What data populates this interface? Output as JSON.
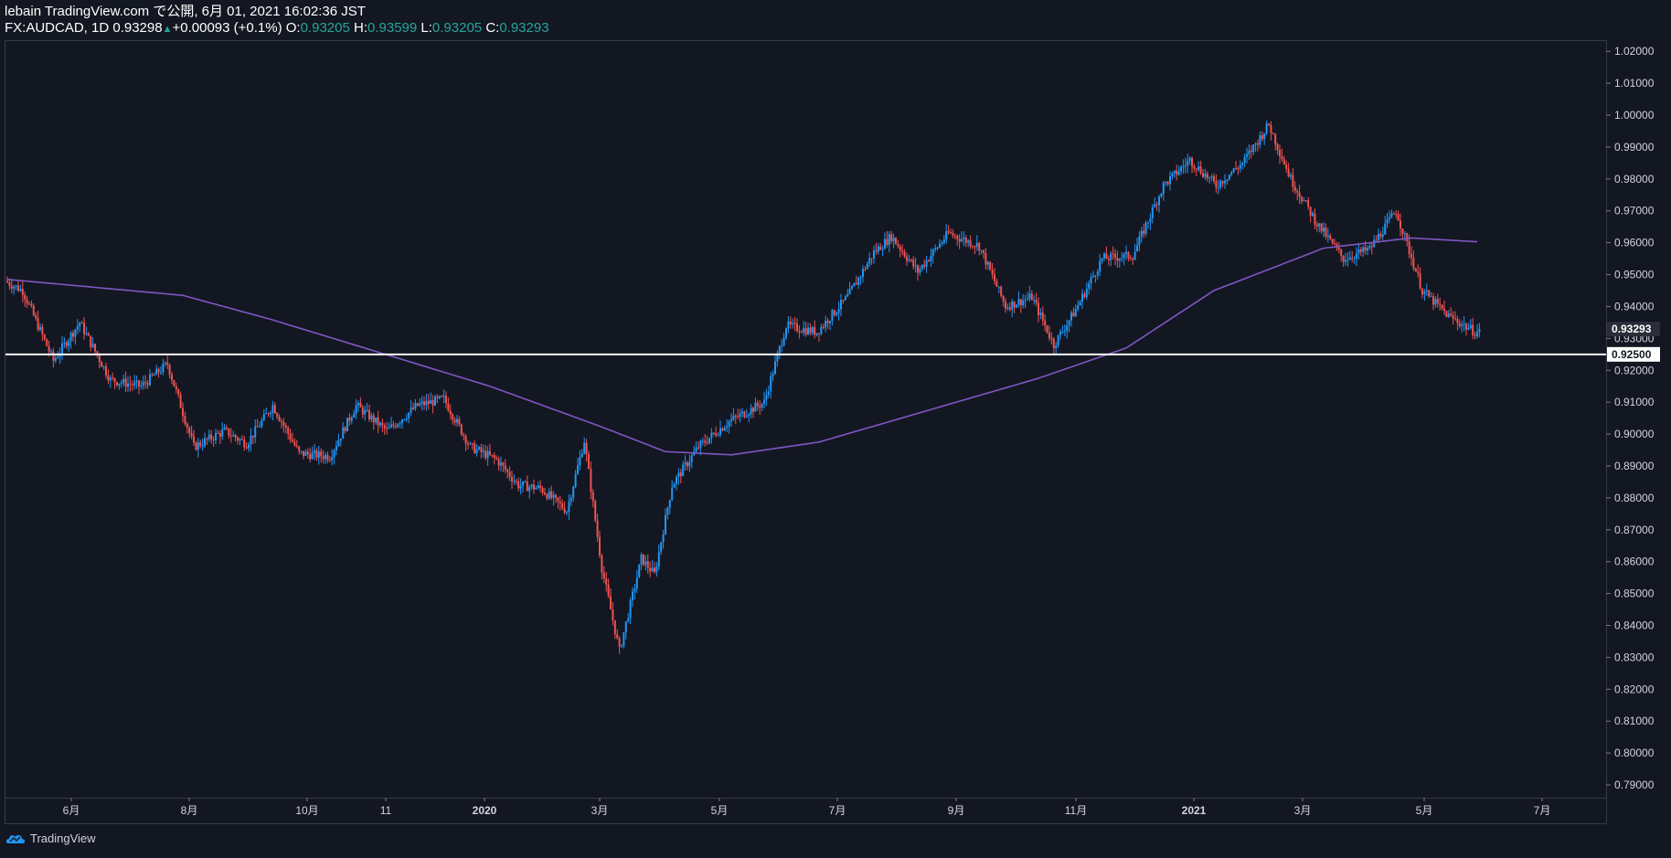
{
  "header": {
    "publisher": "lebain TradingView.com で公開, 6月 01, 2021 16:02:36 JST",
    "symbol": "FX:AUDCAD, 1D",
    "last": "0.93298",
    "change_arrow": "▲",
    "change": "+0.00093 (+0.1%)",
    "open_label": "O:",
    "open": "0.93205",
    "high_label": "H:",
    "high": "0.93599",
    "low_label": "L:",
    "low": "0.93205",
    "close_label": "C:",
    "close": "0.93293"
  },
  "footer": {
    "brand": "TradingView",
    "logo_icon": "tradingview-logo-icon"
  },
  "colors": {
    "background": "#131722",
    "up": "#2196f3",
    "down": "#ef5350",
    "ma": "#7e57c2",
    "hline": "#ffffff",
    "axis_text": "#d1d4dc",
    "teal": "#26a69a"
  },
  "chart_data": {
    "type": "candlestick",
    "symbol": "FX:AUDCAD",
    "interval": "1D",
    "y_axis": {
      "min": 0.786,
      "max": 1.0235,
      "ticks": [
        "0.79000",
        "0.80000",
        "0.81000",
        "0.82000",
        "0.83000",
        "0.84000",
        "0.85000",
        "0.86000",
        "0.87000",
        "0.88000",
        "0.89000",
        "0.90000",
        "0.91000",
        "0.92000",
        "0.93000",
        "0.94000",
        "0.95000",
        "0.96000",
        "0.97000",
        "0.98000",
        "0.99000",
        "1.00000",
        "1.01000",
        "1.02000"
      ],
      "current_price": "0.93293",
      "hline_price": "0.92500"
    },
    "x_axis": {
      "ticks": [
        {
          "label": "6月",
          "bold": false
        },
        {
          "label": "8月",
          "bold": false
        },
        {
          "label": "10月",
          "bold": false
        },
        {
          "label": "11",
          "bold": false
        },
        {
          "label": "2020",
          "bold": true
        },
        {
          "label": "3月",
          "bold": false
        },
        {
          "label": "5月",
          "bold": false
        },
        {
          "label": "7月",
          "bold": false
        },
        {
          "label": "9月",
          "bold": false
        },
        {
          "label": "11月",
          "bold": false
        },
        {
          "label": "2021",
          "bold": true
        },
        {
          "label": "3月",
          "bold": false
        },
        {
          "label": "5月",
          "bold": false
        },
        {
          "label": "7月",
          "bold": false
        }
      ]
    },
    "price_path": [
      {
        "t": 0,
        "p": 0.948
      },
      {
        "t": 8,
        "p": 0.945
      },
      {
        "t": 22,
        "p": 0.923
      },
      {
        "t": 34,
        "p": 0.935
      },
      {
        "t": 48,
        "p": 0.917
      },
      {
        "t": 62,
        "p": 0.915
      },
      {
        "t": 74,
        "p": 0.922
      },
      {
        "t": 86,
        "p": 0.896
      },
      {
        "t": 100,
        "p": 0.901
      },
      {
        "t": 110,
        "p": 0.897
      },
      {
        "t": 122,
        "p": 0.909
      },
      {
        "t": 134,
        "p": 0.894
      },
      {
        "t": 148,
        "p": 0.893
      },
      {
        "t": 160,
        "p": 0.909
      },
      {
        "t": 174,
        "p": 0.901
      },
      {
        "t": 188,
        "p": 0.909
      },
      {
        "t": 200,
        "p": 0.911
      },
      {
        "t": 212,
        "p": 0.896
      },
      {
        "t": 224,
        "p": 0.892
      },
      {
        "t": 234,
        "p": 0.884
      },
      {
        "t": 244,
        "p": 0.883
      },
      {
        "t": 256,
        "p": 0.876
      },
      {
        "t": 264,
        "p": 0.898
      },
      {
        "t": 272,
        "p": 0.858
      },
      {
        "t": 280,
        "p": 0.832
      },
      {
        "t": 290,
        "p": 0.861
      },
      {
        "t": 296,
        "p": 0.856
      },
      {
        "t": 304,
        "p": 0.884
      },
      {
        "t": 316,
        "p": 0.896
      },
      {
        "t": 330,
        "p": 0.904
      },
      {
        "t": 346,
        "p": 0.91
      },
      {
        "t": 356,
        "p": 0.934
      },
      {
        "t": 370,
        "p": 0.932
      },
      {
        "t": 384,
        "p": 0.943
      },
      {
        "t": 396,
        "p": 0.957
      },
      {
        "t": 404,
        "p": 0.962
      },
      {
        "t": 416,
        "p": 0.951
      },
      {
        "t": 430,
        "p": 0.963
      },
      {
        "t": 444,
        "p": 0.959
      },
      {
        "t": 456,
        "p": 0.94
      },
      {
        "t": 468,
        "p": 0.943
      },
      {
        "t": 478,
        "p": 0.928
      },
      {
        "t": 488,
        "p": 0.939
      },
      {
        "t": 500,
        "p": 0.955
      },
      {
        "t": 514,
        "p": 0.956
      },
      {
        "t": 528,
        "p": 0.978
      },
      {
        "t": 540,
        "p": 0.986
      },
      {
        "t": 552,
        "p": 0.978
      },
      {
        "t": 564,
        "p": 0.985
      },
      {
        "t": 576,
        "p": 0.997
      },
      {
        "t": 586,
        "p": 0.98
      },
      {
        "t": 598,
        "p": 0.966
      },
      {
        "t": 610,
        "p": 0.955
      },
      {
        "t": 622,
        "p": 0.958
      },
      {
        "t": 634,
        "p": 0.97
      },
      {
        "t": 646,
        "p": 0.945
      },
      {
        "t": 658,
        "p": 0.937
      },
      {
        "t": 670,
        "p": 0.932
      }
    ],
    "ma_path": [
      {
        "t": 0,
        "p": 0.9485
      },
      {
        "t": 40,
        "p": 0.946
      },
      {
        "t": 80,
        "p": 0.9435
      },
      {
        "t": 120,
        "p": 0.936
      },
      {
        "t": 170,
        "p": 0.9255
      },
      {
        "t": 220,
        "p": 0.915
      },
      {
        "t": 270,
        "p": 0.9025
      },
      {
        "t": 300,
        "p": 0.8945
      },
      {
        "t": 330,
        "p": 0.8935
      },
      {
        "t": 370,
        "p": 0.8975
      },
      {
        "t": 420,
        "p": 0.9075
      },
      {
        "t": 470,
        "p": 0.9175
      },
      {
        "t": 510,
        "p": 0.927
      },
      {
        "t": 550,
        "p": 0.945
      },
      {
        "t": 600,
        "p": 0.9583
      },
      {
        "t": 640,
        "p": 0.9615
      },
      {
        "t": 670,
        "p": 0.9603
      }
    ],
    "bar_count": 672,
    "seed": 7
  }
}
